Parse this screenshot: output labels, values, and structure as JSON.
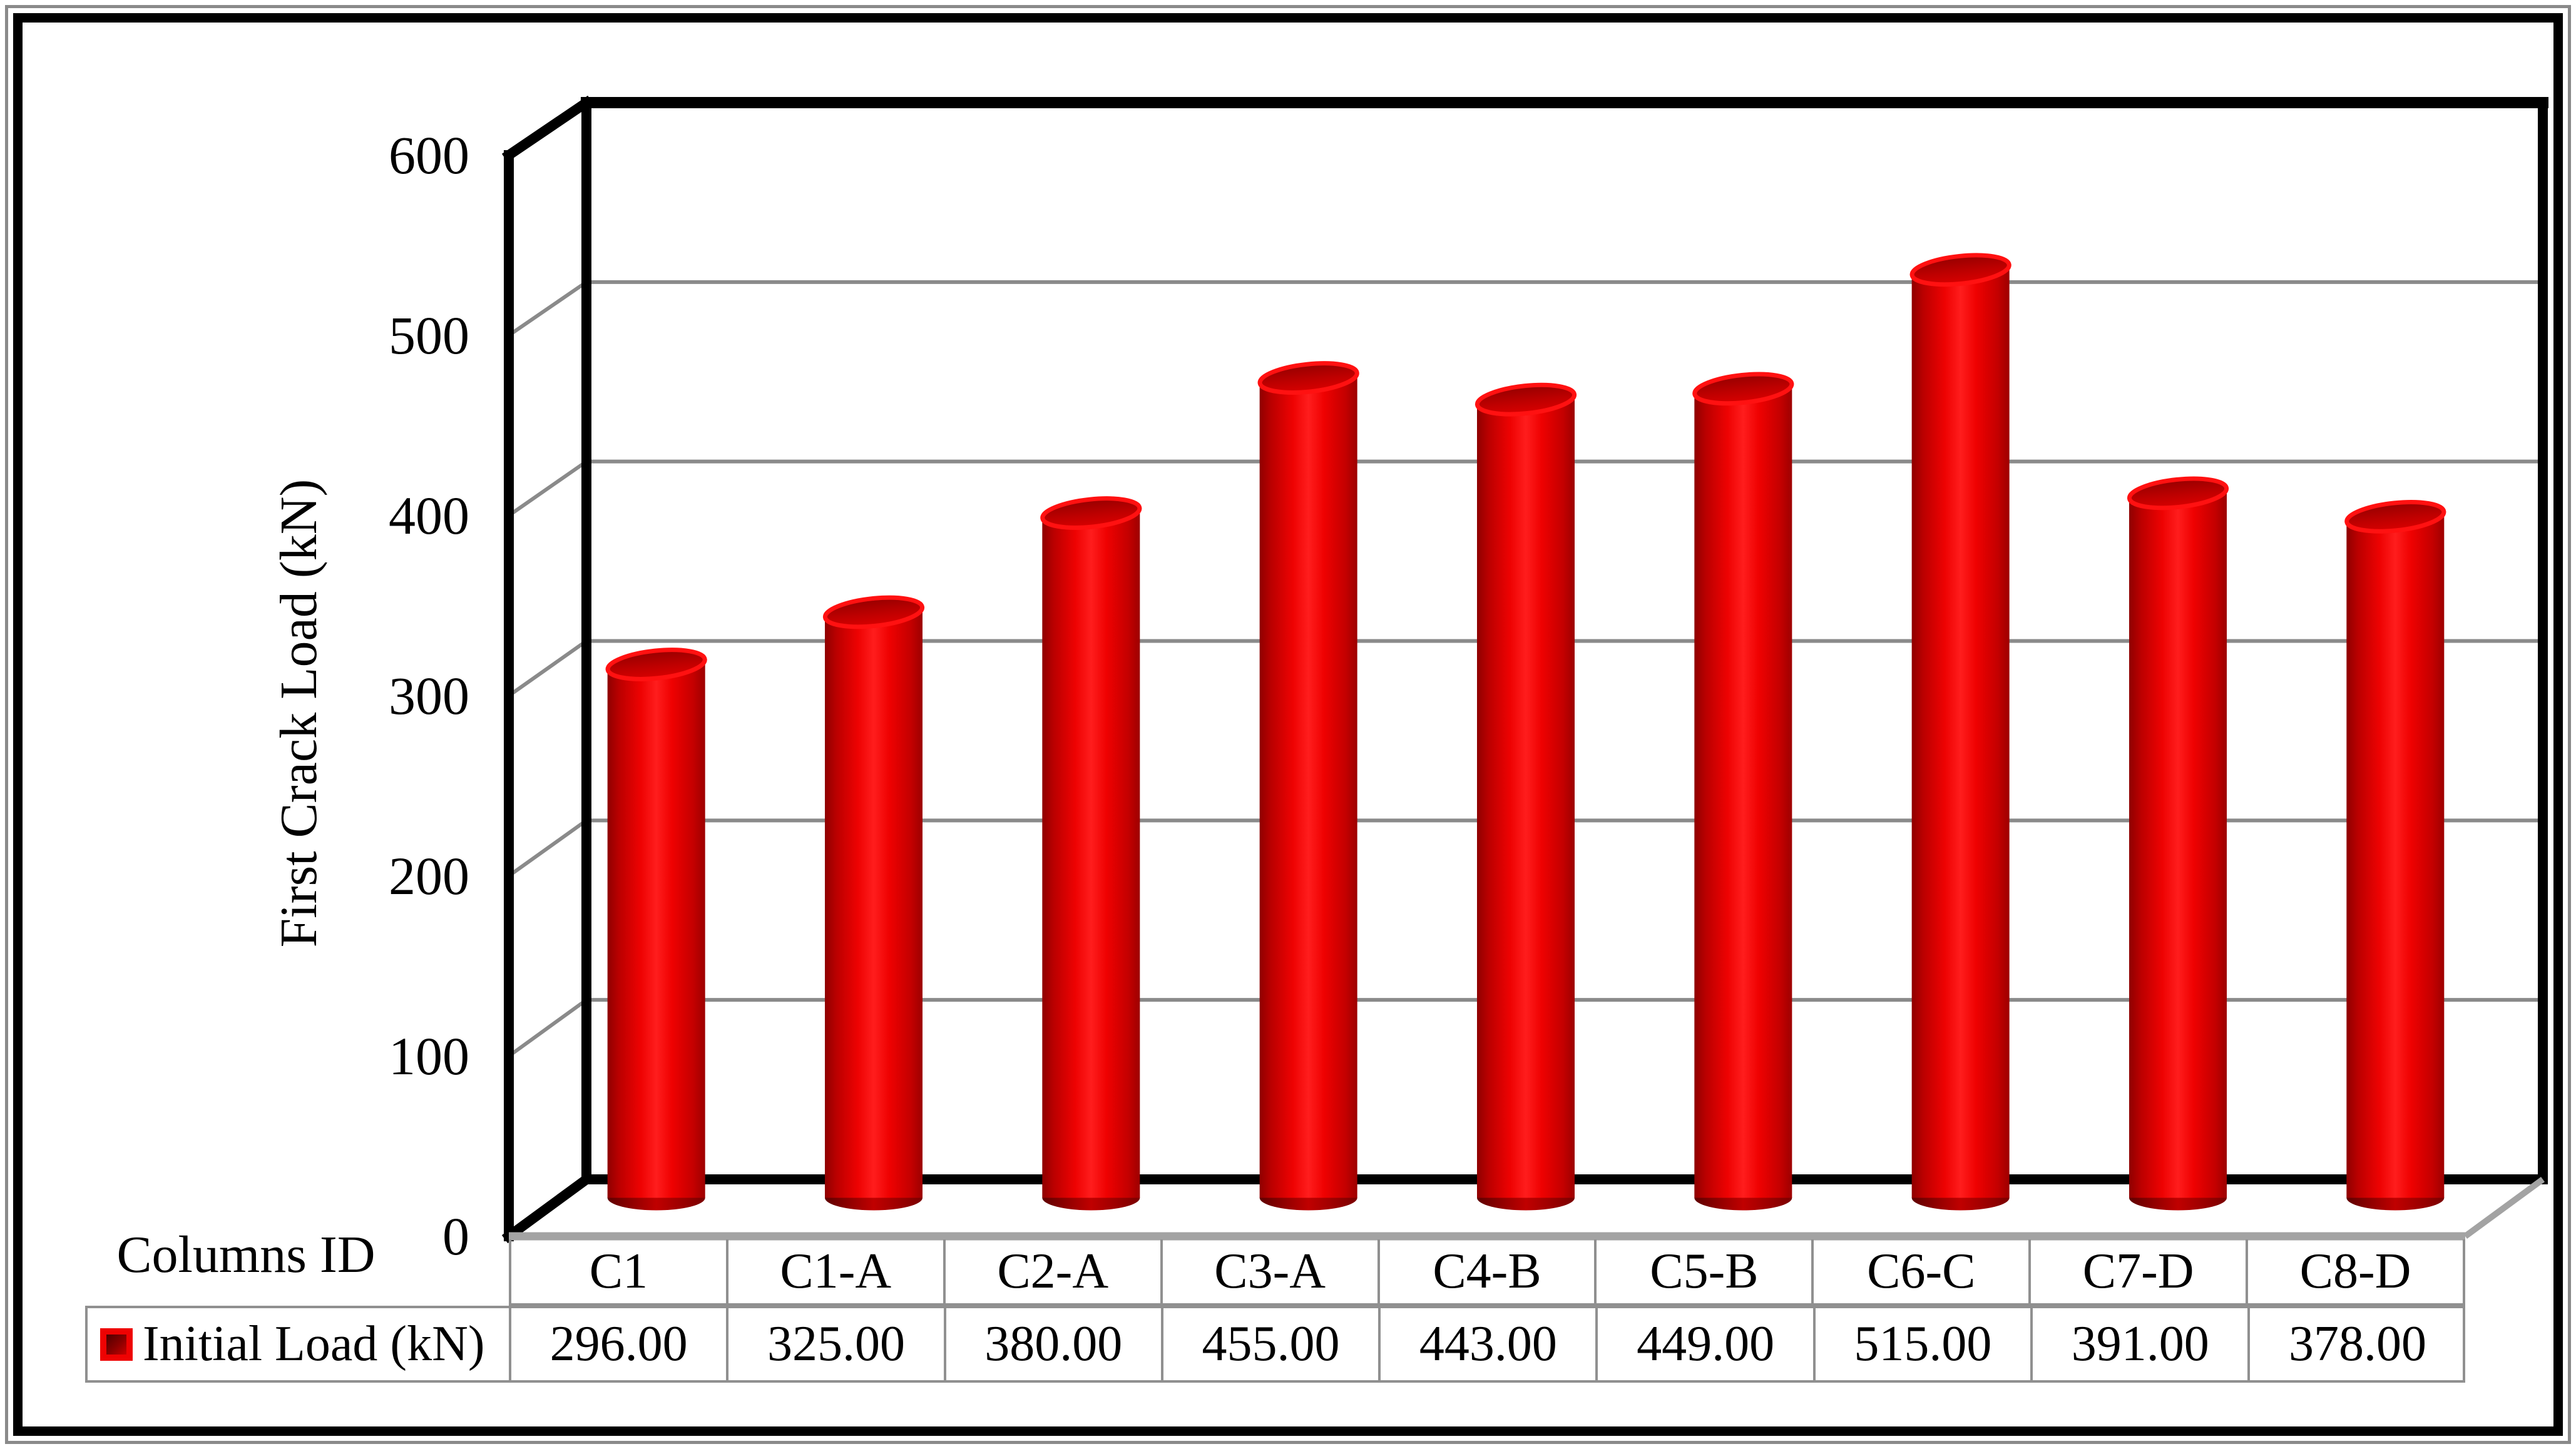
{
  "chart_data": {
    "type": "bar",
    "subtype": "cylinder-3d",
    "title": "",
    "xlabel": "Columns ID",
    "ylabel": "First Crack Load (kN)",
    "categories": [
      "C1",
      "C1-A",
      "C2-A",
      "C3-A",
      "C4-B",
      "C5-B",
      "C6-C",
      "C7-D",
      "C8-D"
    ],
    "series": [
      {
        "name": "Initial Load (kN)",
        "values": [
          296,
          325,
          380,
          455,
          443,
          449,
          515,
          391,
          378
        ]
      }
    ],
    "value_labels": [
      "296.00",
      "325.00",
      "380.00",
      "455.00",
      "443.00",
      "449.00",
      "515.00",
      "391.00",
      "378.00"
    ],
    "ylim": [
      0,
      600
    ],
    "ytick_interval": 100,
    "yticks": [
      "0",
      "100",
      "200",
      "300",
      "400",
      "500",
      "600"
    ],
    "grid": true,
    "legend_position": "table-row-left",
    "colors": {
      "bar": "#e60000",
      "bar_dark": "#8f0000",
      "bar_bright": "#ff1d1d",
      "rim": "#ff1111",
      "gridline": "#8a8a8a",
      "wall_edge": "#000000",
      "floor_edge": "#a3a3a3",
      "table_border": "#909090"
    }
  }
}
